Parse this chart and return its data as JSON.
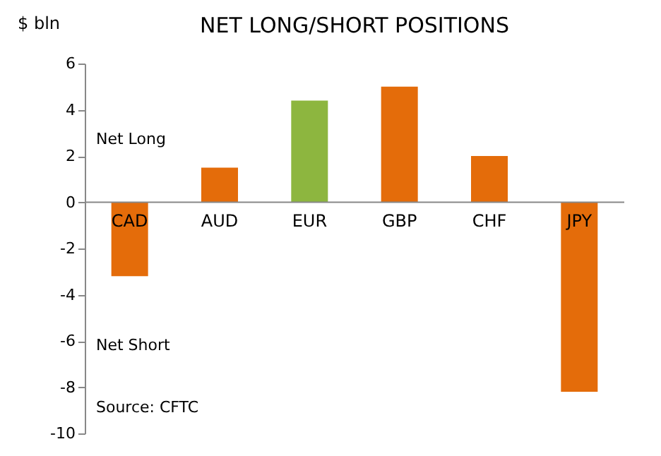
{
  "chart_data": {
    "type": "bar",
    "title": "NET LONG/SHORT POSITIONS",
    "ylabel": "$ bln",
    "categories": [
      "CAD",
      "AUD",
      "EUR",
      "GBP",
      "CHF",
      "JPY"
    ],
    "values": [
      -3.2,
      1.5,
      4.4,
      5.0,
      2.0,
      -8.2
    ],
    "colors": [
      "#e46c0a",
      "#e46c0a",
      "#8db63f",
      "#e46c0a",
      "#e46c0a",
      "#e46c0a"
    ],
    "ylim": [
      -10,
      6
    ],
    "yticks": [
      -10,
      -8,
      -6,
      -4,
      -2,
      0,
      2,
      4,
      6
    ],
    "grid": false,
    "annotations": [
      "Net Long",
      "Net Short",
      "Source: CFTC"
    ]
  }
}
